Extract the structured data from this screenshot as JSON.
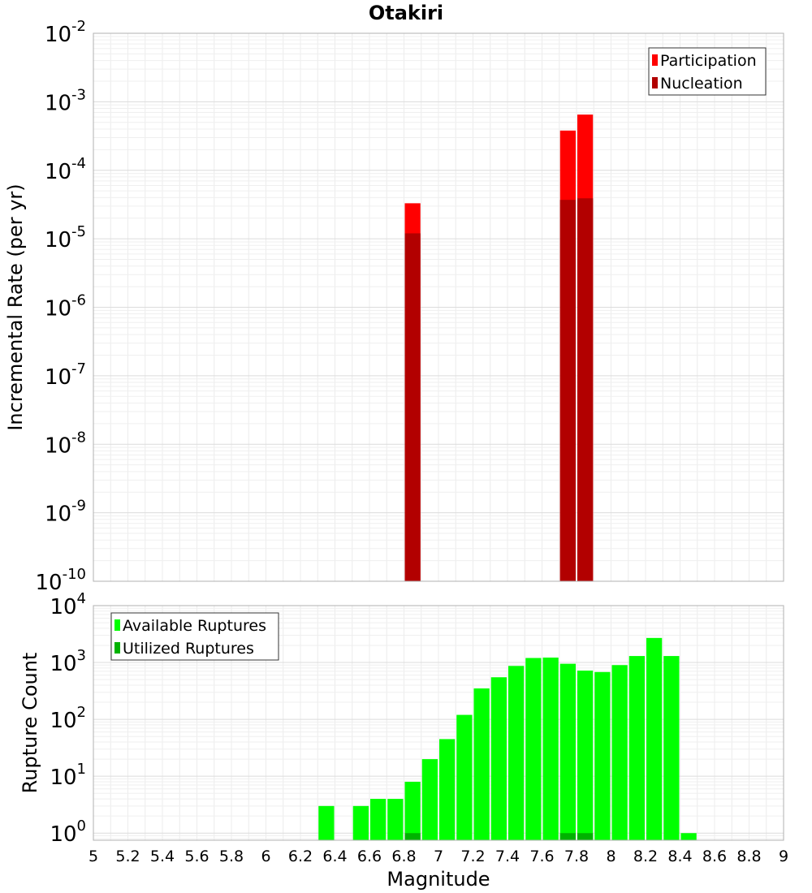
{
  "chart_data": [
    {
      "type": "bar",
      "title": "Otakiri",
      "ylabel": "Incremental Rate (per yr)",
      "xlabel": "",
      "xlim": [
        5,
        9
      ],
      "ylim": [
        1e-10,
        0.01
      ],
      "yscale": "log",
      "grid": true,
      "legend_position": "top-right",
      "yticks": [
        {
          "base": "10",
          "exp": "-10",
          "value": 1e-10
        },
        {
          "base": "10",
          "exp": "-9",
          "value": 1e-09
        },
        {
          "base": "10",
          "exp": "-8",
          "value": 1e-08
        },
        {
          "base": "10",
          "exp": "-7",
          "value": 1e-07
        },
        {
          "base": "10",
          "exp": "-6",
          "value": 1e-06
        },
        {
          "base": "10",
          "exp": "-5",
          "value": 1e-05
        },
        {
          "base": "10",
          "exp": "-4",
          "value": 0.0001
        },
        {
          "base": "10",
          "exp": "-3",
          "value": 0.001
        },
        {
          "base": "10",
          "exp": "-2",
          "value": 0.01
        }
      ],
      "series": [
        {
          "name": "Participation",
          "color": "#ff0000",
          "x": [
            6.85,
            7.75,
            7.85
          ],
          "values": [
            3.3e-05,
            0.00038,
            0.00065
          ]
        },
        {
          "name": "Nucleation",
          "color": "#b20000",
          "x": [
            6.85,
            7.75,
            7.85
          ],
          "values": [
            1.2e-05,
            3.7e-05,
            3.9e-05
          ]
        }
      ]
    },
    {
      "type": "bar",
      "title": "",
      "ylabel": "Rupture Count",
      "xlabel": "Magnitude",
      "xlim": [
        5,
        9
      ],
      "ylim": [
        0.75,
        10000.0
      ],
      "yscale": "log",
      "grid": true,
      "legend_position": "top-left",
      "yticks": [
        {
          "base": "10",
          "exp": "0",
          "value": 1
        },
        {
          "base": "10",
          "exp": "1",
          "value": 10
        },
        {
          "base": "10",
          "exp": "2",
          "value": 100
        },
        {
          "base": "10",
          "exp": "3",
          "value": 1000
        },
        {
          "base": "10",
          "exp": "4",
          "value": 10000
        }
      ],
      "xticks": [
        "5",
        "5.2",
        "5.4",
        "5.6",
        "5.8",
        "6",
        "6.2",
        "6.4",
        "6.6",
        "6.8",
        "7",
        "7.2",
        "7.4",
        "7.6",
        "7.8",
        "8",
        "8.2",
        "8.4",
        "8.6",
        "8.8",
        "9"
      ],
      "series": [
        {
          "name": "Available Ruptures",
          "color": "#00ff00",
          "x": [
            6.35,
            6.55,
            6.65,
            6.75,
            6.85,
            6.95,
            7.05,
            7.15,
            7.25,
            7.35,
            7.45,
            7.55,
            7.65,
            7.75,
            7.85,
            7.95,
            8.05,
            8.15,
            8.25,
            8.35,
            8.45
          ],
          "values": [
            3,
            3,
            4,
            4,
            8,
            20,
            45,
            120,
            350,
            550,
            870,
            1200,
            1220,
            950,
            720,
            680,
            900,
            1300,
            2700,
            1300,
            1
          ]
        },
        {
          "name": "Utilized Ruptures",
          "color": "#00b200",
          "x": [
            6.85,
            7.75,
            7.85
          ],
          "values": [
            1,
            1,
            1
          ]
        }
      ]
    }
  ]
}
